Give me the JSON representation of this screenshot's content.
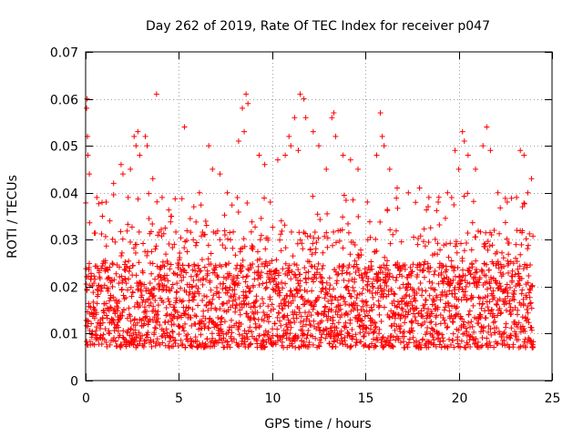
{
  "chart_data": {
    "type": "scatter",
    "title": "Day 262 of 2019, Rate Of TEC Index for receiver p047",
    "xlabel": "GPS time / hours",
    "ylabel": "ROTI / TECUs",
    "xlim": [
      0,
      25
    ],
    "ylim": [
      0,
      0.07
    ],
    "xticks": [
      0,
      5,
      10,
      15,
      20,
      25
    ],
    "xtick_labels": [
      "0",
      "5",
      "10",
      "15",
      "20",
      "25"
    ],
    "yticks": [
      0,
      0.01,
      0.02,
      0.03,
      0.04,
      0.05,
      0.06,
      0.07
    ],
    "ytick_labels": [
      "0",
      "0.01",
      "0.02",
      "0.03",
      "0.04",
      "0.05",
      "0.06",
      "0.07"
    ],
    "grid": true,
    "marker": "plus",
    "color": "#ff0000",
    "series": [
      {
        "name": "ROTI",
        "x_range": [
          0,
          24
        ],
        "typical_range": [
          0.005,
          0.025
        ],
        "points": [
          [
            0.05,
            0.058
          ],
          [
            0.08,
            0.06
          ],
          [
            0.1,
            0.052
          ],
          [
            0.12,
            0.048
          ],
          [
            0.2,
            0.044
          ],
          [
            0.6,
            0.039
          ],
          [
            0.9,
            0.035
          ],
          [
            1.1,
            0.038
          ],
          [
            1.3,
            0.034
          ],
          [
            1.5,
            0.042
          ],
          [
            1.9,
            0.046
          ],
          [
            2.0,
            0.044
          ],
          [
            2.4,
            0.045
          ],
          [
            2.6,
            0.052
          ],
          [
            2.7,
            0.05
          ],
          [
            2.8,
            0.053
          ],
          [
            2.9,
            0.048
          ],
          [
            3.2,
            0.052
          ],
          [
            3.3,
            0.05
          ],
          [
            3.6,
            0.043
          ],
          [
            3.8,
            0.061
          ],
          [
            4.1,
            0.039
          ],
          [
            4.6,
            0.035
          ],
          [
            5.3,
            0.054
          ],
          [
            5.8,
            0.037
          ],
          [
            6.1,
            0.04
          ],
          [
            6.6,
            0.05
          ],
          [
            6.8,
            0.045
          ],
          [
            7.2,
            0.044
          ],
          [
            7.6,
            0.04
          ],
          [
            8.2,
            0.051
          ],
          [
            8.4,
            0.058
          ],
          [
            8.5,
            0.053
          ],
          [
            8.6,
            0.061
          ],
          [
            8.7,
            0.059
          ],
          [
            9.3,
            0.048
          ],
          [
            9.6,
            0.046
          ],
          [
            9.9,
            0.038
          ],
          [
            10.3,
            0.047
          ],
          [
            10.7,
            0.048
          ],
          [
            10.9,
            0.052
          ],
          [
            11.0,
            0.05
          ],
          [
            11.2,
            0.056
          ],
          [
            11.4,
            0.049
          ],
          [
            11.5,
            0.061
          ],
          [
            11.7,
            0.06
          ],
          [
            11.8,
            0.056
          ],
          [
            12.2,
            0.053
          ],
          [
            12.5,
            0.05
          ],
          [
            12.9,
            0.045
          ],
          [
            13.2,
            0.056
          ],
          [
            13.3,
            0.057
          ],
          [
            13.4,
            0.052
          ],
          [
            13.8,
            0.048
          ],
          [
            14.2,
            0.047
          ],
          [
            14.6,
            0.045
          ],
          [
            15.1,
            0.038
          ],
          [
            15.6,
            0.048
          ],
          [
            15.8,
            0.057
          ],
          [
            15.9,
            0.052
          ],
          [
            16.0,
            0.05
          ],
          [
            16.3,
            0.045
          ],
          [
            16.7,
            0.041
          ],
          [
            17.3,
            0.04
          ],
          [
            17.9,
            0.041
          ],
          [
            18.4,
            0.039
          ],
          [
            18.9,
            0.038
          ],
          [
            19.4,
            0.04
          ],
          [
            19.8,
            0.049
          ],
          [
            20.0,
            0.045
          ],
          [
            20.2,
            0.053
          ],
          [
            20.3,
            0.051
          ],
          [
            20.5,
            0.048
          ],
          [
            20.9,
            0.045
          ],
          [
            21.3,
            0.05
          ],
          [
            21.5,
            0.054
          ],
          [
            21.7,
            0.049
          ],
          [
            22.1,
            0.04
          ],
          [
            22.6,
            0.038
          ],
          [
            23.1,
            0.039
          ],
          [
            23.3,
            0.049
          ],
          [
            23.5,
            0.048
          ],
          [
            23.7,
            0.04
          ],
          [
            23.9,
            0.043
          ]
        ]
      }
    ]
  }
}
